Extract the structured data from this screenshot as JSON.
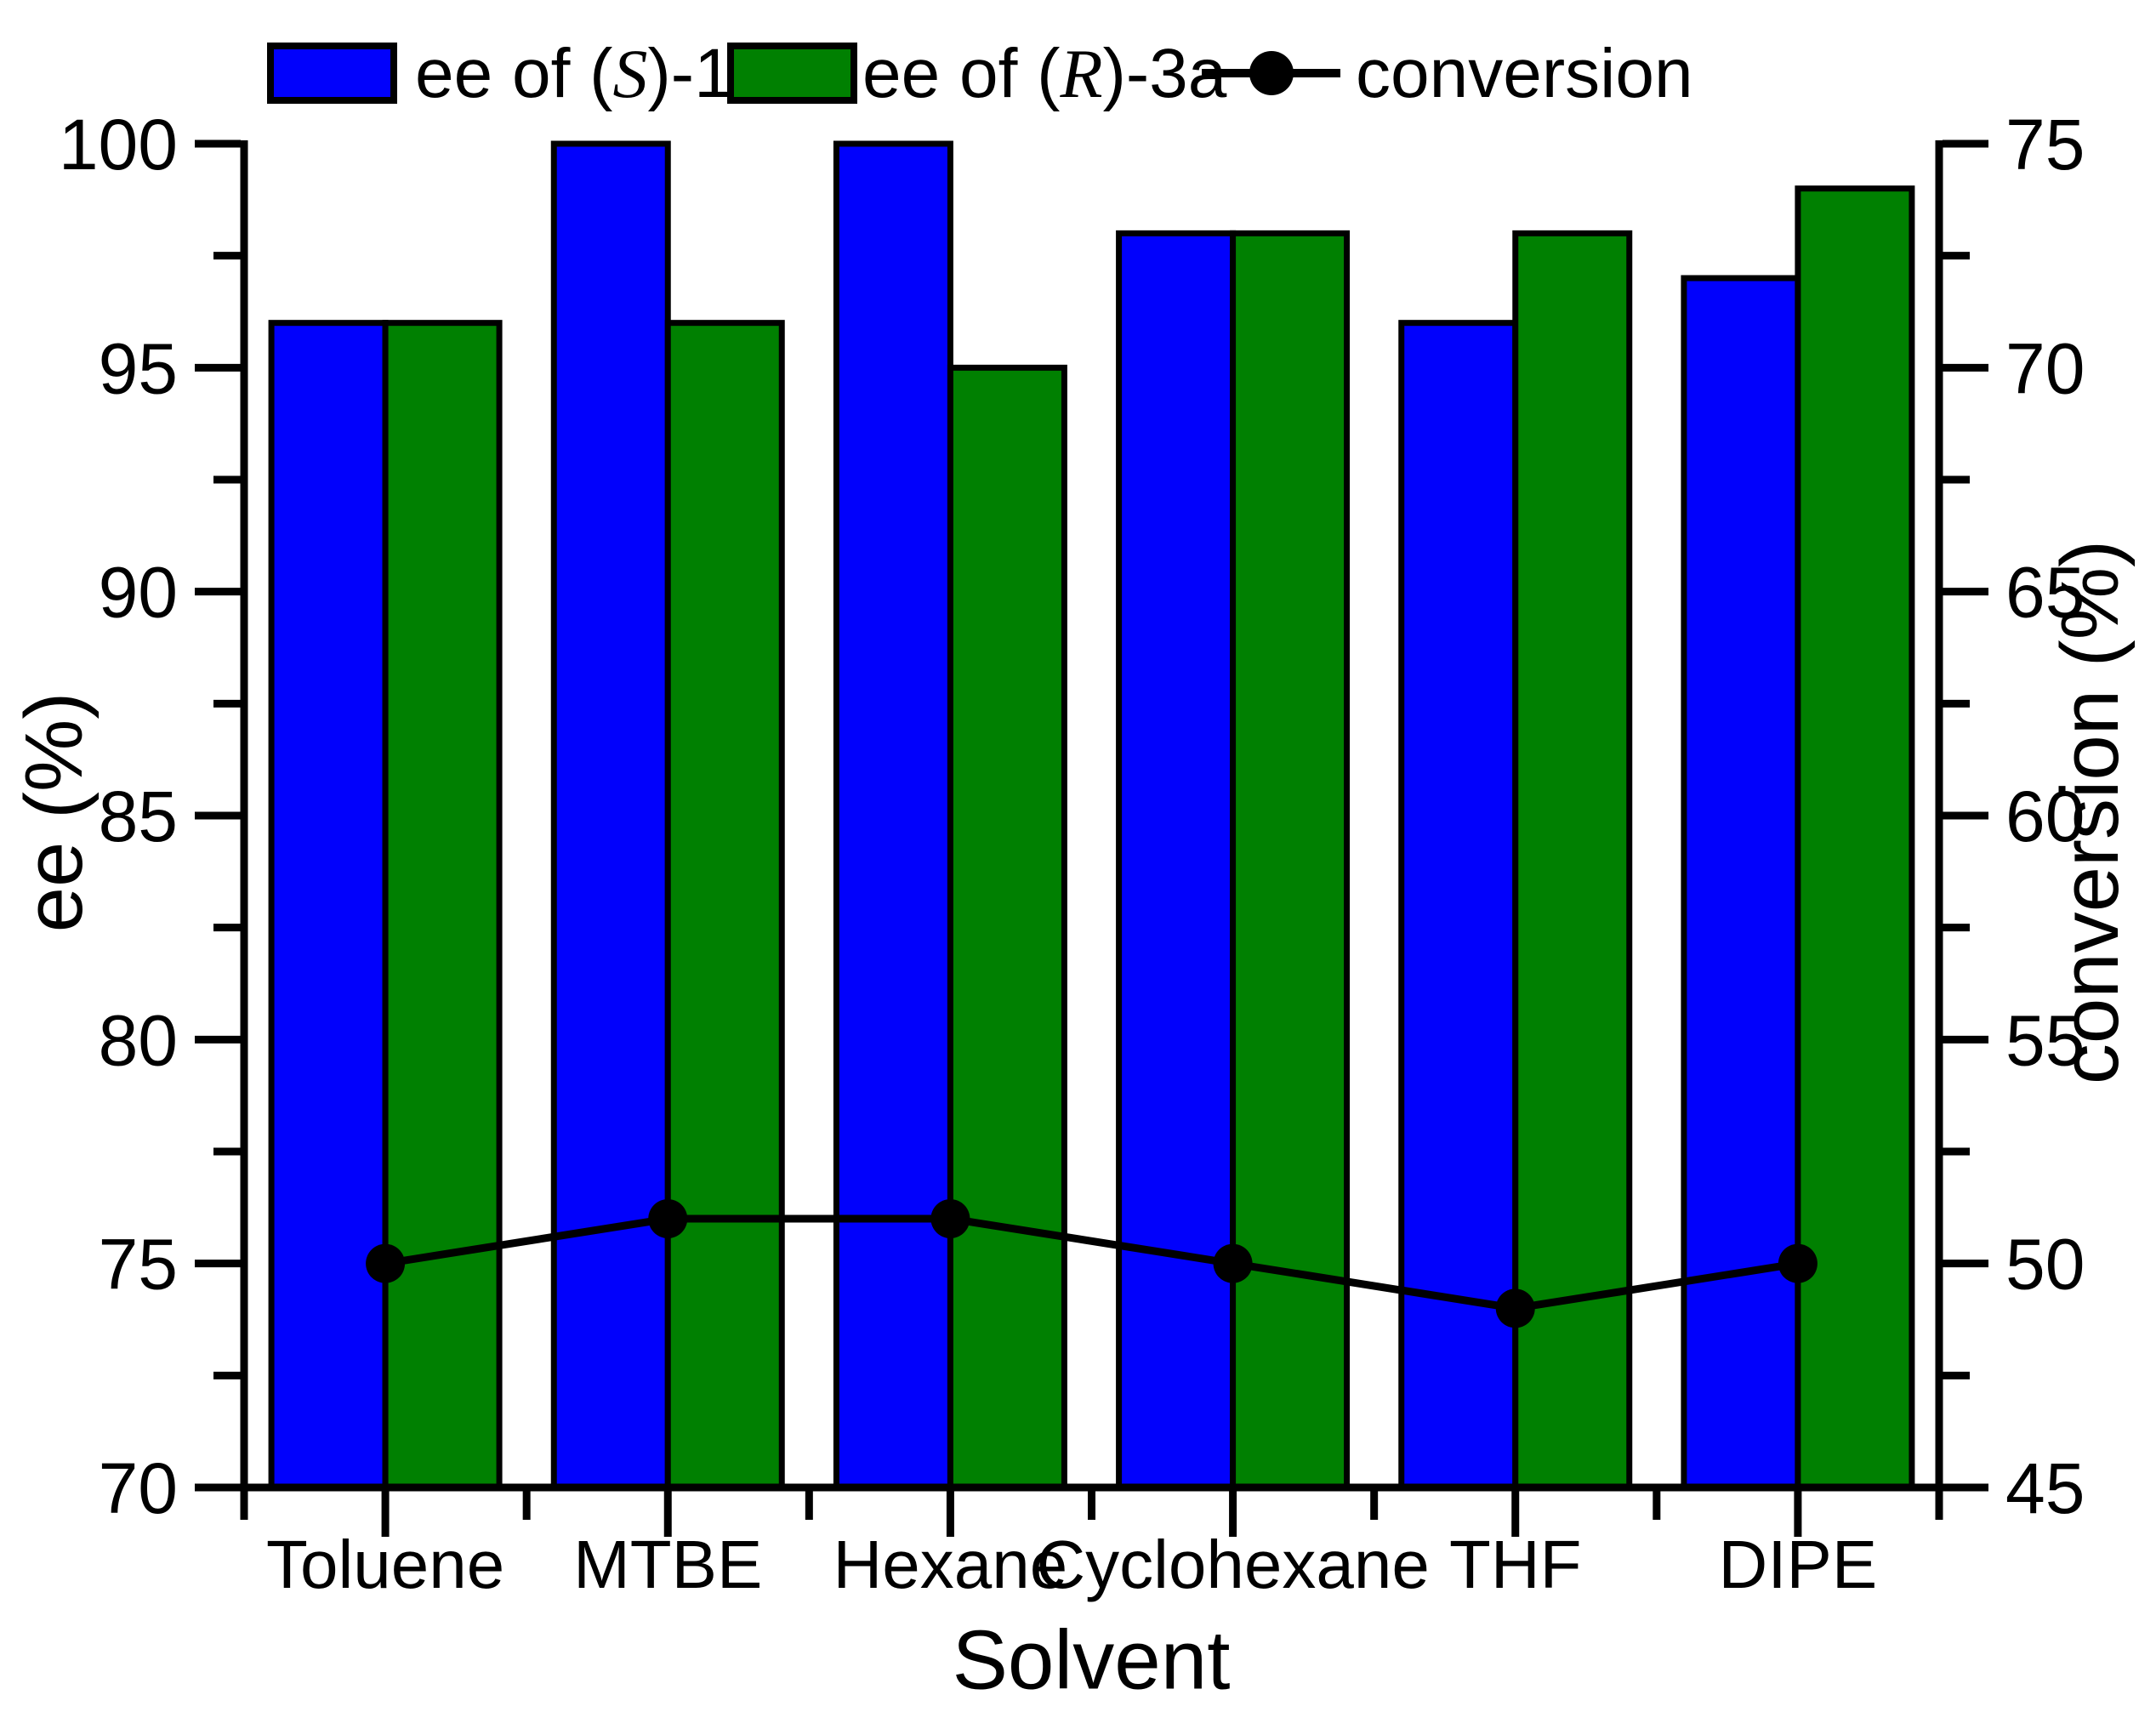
{
  "chart_data": {
    "type": "bar",
    "title": "",
    "categories": [
      "Toluene",
      "MTBE",
      "Hexane",
      "Cyclohexane",
      "THF",
      "DIPE"
    ],
    "series": [
      {
        "name": "ee of (S)-1a",
        "type": "bar",
        "axis": "left",
        "color": "#0101fc",
        "values": [
          96,
          100,
          100,
          98,
          96,
          97
        ]
      },
      {
        "name": "ee of (R)-3a",
        "type": "bar",
        "axis": "left",
        "color": "#008001",
        "values": [
          96,
          96,
          95,
          98,
          98,
          99
        ]
      },
      {
        "name": "conversion",
        "type": "line",
        "axis": "right",
        "color": "#000000",
        "values": [
          50,
          51,
          51,
          50,
          49,
          50
        ]
      }
    ],
    "xlabel": "Solvent",
    "ylabel_left": "ee (%)",
    "ylabel_right": "conversion (%)",
    "axis_left": {
      "min": 70,
      "max": 100,
      "major_step": 5,
      "minor_step": 2.5,
      "tick_labels": [
        "70",
        "75",
        "80",
        "85",
        "90",
        "95",
        "100"
      ]
    },
    "axis_right": {
      "min": 45,
      "max": 75,
      "major_step": 5,
      "minor_step": 2.5,
      "tick_labels": [
        "45",
        "50",
        "55",
        "60",
        "65",
        "70",
        "75"
      ]
    },
    "grid": false,
    "legend_position": "top"
  },
  "legend": {
    "items": [
      {
        "pre": "ee of (",
        "italic": "S",
        "post": ")-1a"
      },
      {
        "pre": "ee of (",
        "italic": "R",
        "post": ")-3a"
      },
      {
        "label": "conversion"
      }
    ]
  },
  "colors": {
    "bar_blue": "#0101fc",
    "bar_green": "#008001",
    "line_black": "#000000"
  }
}
